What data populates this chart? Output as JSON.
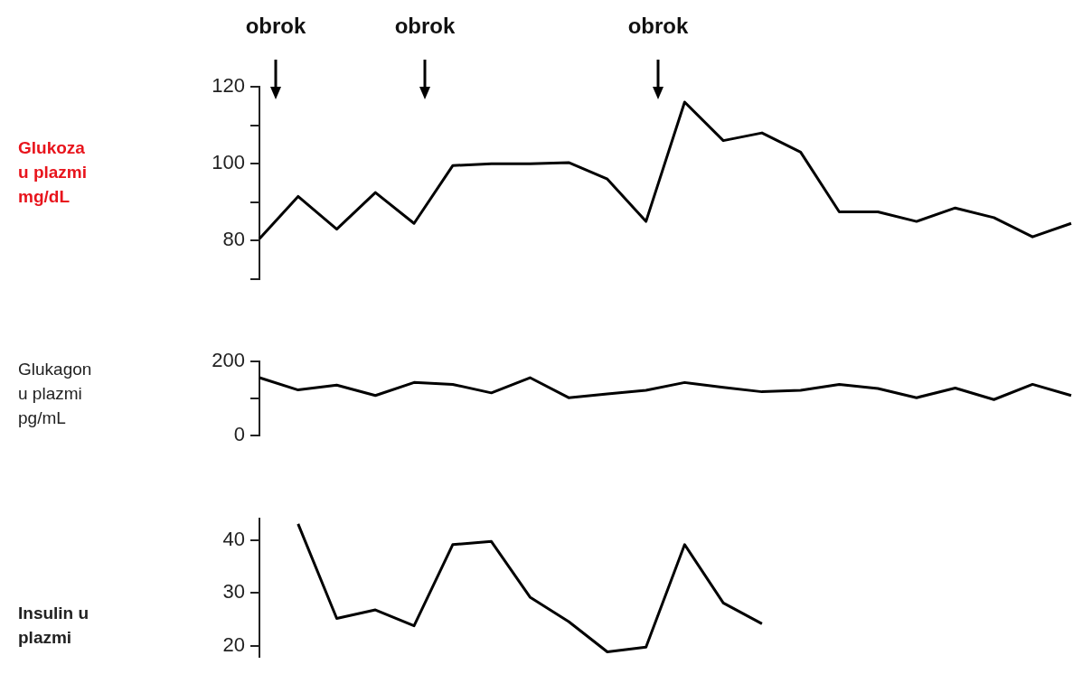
{
  "chart_data": [
    {
      "type": "line",
      "ylabel": "Glukoza u plazmi mg/dL",
      "categories": [
        null,
        null,
        null,
        null,
        null,
        null,
        null,
        null,
        null,
        null,
        null,
        null,
        null,
        null,
        null,
        null,
        null,
        null,
        null,
        null,
        null,
        null
      ],
      "tick_labels": "y",
      "series": [
        {
          "color": "#000000",
          "values": [
            80.5,
            91.5,
            83,
            92.5,
            84.5,
            99.5,
            100,
            100,
            100.3,
            96,
            85,
            116,
            106,
            108,
            103,
            87.5,
            87.5,
            85,
            88.5,
            86,
            81,
            84.5
          ]
        }
      ],
      "ylim": [
        70,
        120
      ],
      "yticks": [
        {
          "value": 70,
          "label": null
        },
        80,
        {
          "value": 90,
          "label": null
        },
        100,
        {
          "value": 110,
          "label": null
        },
        120
      ],
      "annotations": [
        "obrok",
        "obrok",
        "obrok"
      ]
    },
    {
      "type": "line",
      "ylabel": "Glukagon u plazmi pg/mL",
      "categories": [
        null,
        null,
        null,
        null,
        null,
        null,
        null,
        null,
        null,
        null,
        null,
        null,
        null,
        null,
        null,
        null,
        null,
        null,
        null,
        null,
        null,
        null
      ],
      "tick_labels": "y",
      "series": [
        {
          "color": "#000000",
          "values": [
            156,
            123,
            136,
            108,
            143,
            138,
            115,
            156,
            102,
            112,
            122,
            143,
            130,
            118,
            122,
            138,
            127,
            102,
            128,
            97,
            138,
            108
          ]
        }
      ],
      "ylim": [
        0,
        200
      ],
      "yticks": [
        0,
        {
          "value": 100,
          "label": null
        },
        200
      ]
    },
    {
      "type": "line",
      "ylabel": "Insulin u plazmi",
      "categories": [
        null,
        null,
        null,
        null,
        null,
        null,
        null,
        null,
        null,
        null,
        null,
        null,
        null,
        null,
        null,
        null,
        null,
        null,
        null,
        null,
        null,
        null
      ],
      "tick_labels": "y",
      "series": [
        {
          "color": "#000000",
          "values": [
            null,
            43,
            25.2,
            26.8,
            23.8,
            39.1,
            39.7,
            29.2,
            24.6,
            18.9,
            19.8,
            39.1,
            28.1,
            24.2,
            null,
            null,
            null,
            null,
            null,
            null,
            null,
            null
          ]
        }
      ],
      "ylim": [
        18,
        44
      ],
      "yticks": [
        20,
        30,
        40
      ]
    }
  ]
}
